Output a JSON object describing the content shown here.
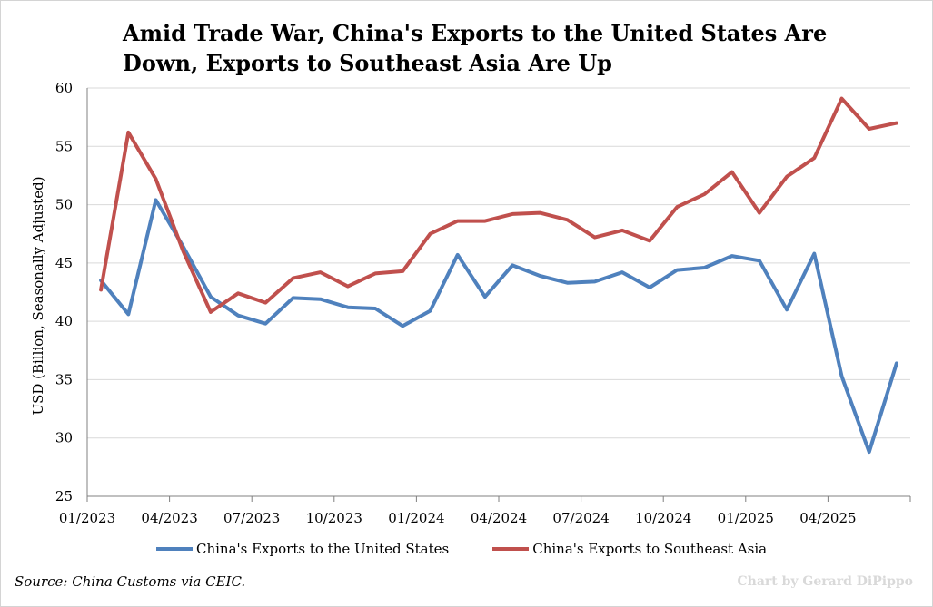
{
  "title_lines": [
    "Amid Trade War, China's Exports to the United States Are",
    "Down, Exports to Southeast Asia Are Up"
  ],
  "source": "Source: China Customs via CEIC.",
  "credit": "Chart by Gerard DiPippo",
  "colors": {
    "us": "#4f81bd",
    "sea": "#c0504d",
    "grid": "#d9d9d9",
    "axis": "#808080"
  },
  "chart_data": {
    "type": "line",
    "title": "Amid Trade War, China's Exports to the United States Are Down, Exports to Southeast Asia Are Up",
    "xlabel": "",
    "ylabel": "USD (Billion, Seasonally Adjusted)",
    "ylim": [
      25,
      60
    ],
    "yticks": [
      25,
      30,
      35,
      40,
      45,
      50,
      55,
      60
    ],
    "grid": "horizontal",
    "legend_position": "bottom",
    "xtick_labels": [
      "01/2023",
      "04/2023",
      "07/2023",
      "10/2023",
      "01/2024",
      "04/2024",
      "07/2024",
      "10/2024",
      "01/2025",
      "04/2025"
    ],
    "x": [
      "2023-01",
      "2023-02",
      "2023-03",
      "2023-04",
      "2023-05",
      "2023-06",
      "2023-07",
      "2023-08",
      "2023-09",
      "2023-10",
      "2023-11",
      "2023-12",
      "2024-01",
      "2024-02",
      "2024-03",
      "2024-04",
      "2024-05",
      "2024-06",
      "2024-07",
      "2024-08",
      "2024-09",
      "2024-10",
      "2024-11",
      "2024-12",
      "2025-01",
      "2025-02",
      "2025-03",
      "2025-04",
      "2025-05",
      "2025-06"
    ],
    "series": [
      {
        "name": "China's Exports to the United States",
        "color": "#4f81bd",
        "values": [
          43.5,
          40.6,
          50.4,
          46.4,
          42.1,
          40.5,
          39.8,
          42.0,
          41.9,
          41.2,
          41.1,
          39.6,
          40.9,
          45.7,
          42.1,
          44.8,
          43.9,
          43.3,
          43.4,
          44.2,
          42.9,
          44.4,
          44.6,
          45.6,
          45.2,
          41.0,
          45.8,
          35.3,
          28.8,
          36.4
        ]
      },
      {
        "name": "China's Exports to Southeast Asia",
        "color": "#c0504d",
        "values": [
          42.7,
          56.2,
          52.2,
          46.0,
          40.8,
          42.4,
          41.6,
          43.7,
          44.2,
          43.0,
          44.1,
          44.3,
          47.5,
          48.6,
          48.6,
          49.2,
          49.3,
          48.7,
          47.2,
          47.8,
          46.9,
          49.8,
          50.9,
          52.8,
          49.3,
          52.4,
          54.0,
          59.1,
          56.5,
          57.0
        ]
      }
    ]
  }
}
